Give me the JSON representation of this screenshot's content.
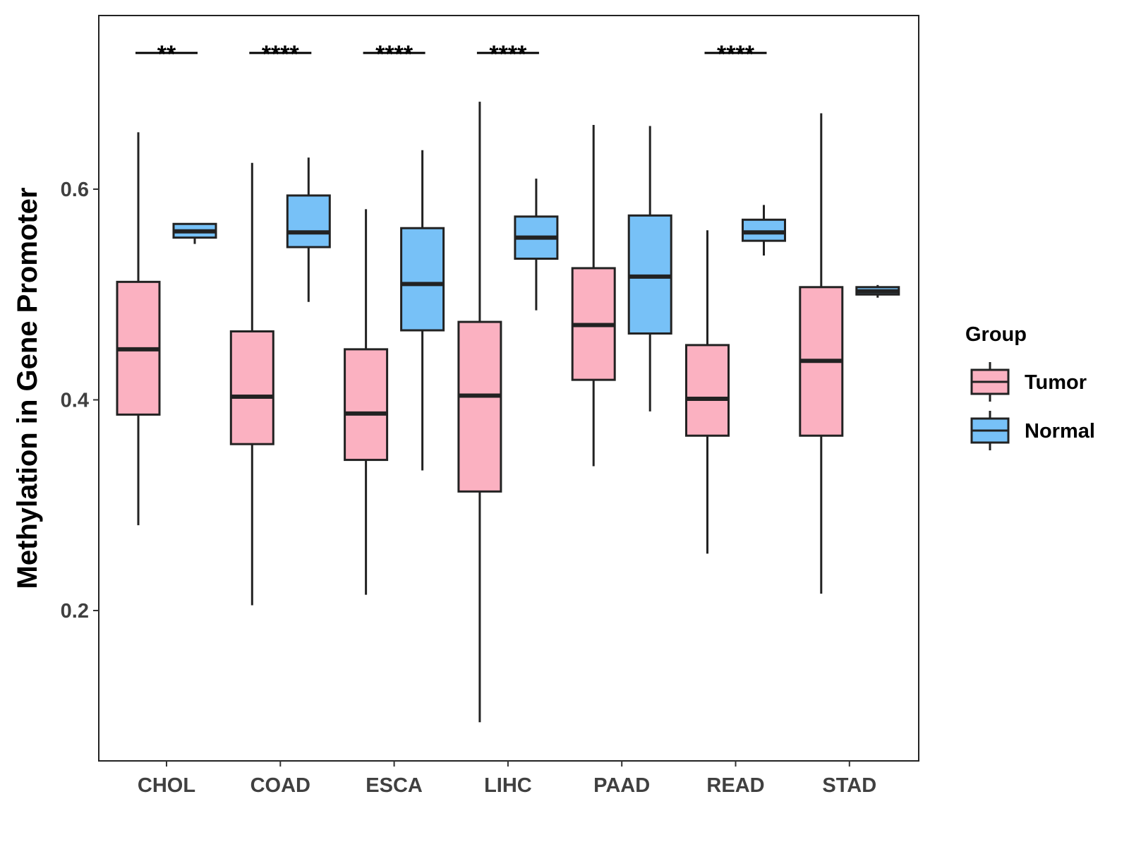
{
  "chart_data": {
    "type": "boxplot",
    "title": "",
    "xlabel": "",
    "ylabel": "Methylation in Gene Promoter",
    "ylim": [
      0.065,
      0.77
    ],
    "yticks": [
      0.2,
      0.4,
      0.6
    ],
    "ytick_labels": [
      "0.2",
      "0.4",
      "0.6"
    ],
    "grid": false,
    "categories": [
      "CHOL",
      "COAD",
      "ESCA",
      "LIHC",
      "PAAD",
      "READ",
      "STAD"
    ],
    "legend": {
      "title": "Group",
      "position": "right",
      "entries": [
        {
          "name": "Tumor",
          "color": "#fbb1c1"
        },
        {
          "name": "Normal",
          "color": "#77c1f7"
        }
      ]
    },
    "series": [
      {
        "name": "Tumor",
        "color": "#fbb1c1",
        "boxes": [
          {
            "min": 0.281,
            "q1": 0.386,
            "median": 0.448,
            "q3": 0.512,
            "max": 0.654
          },
          {
            "min": 0.205,
            "q1": 0.358,
            "median": 0.403,
            "q3": 0.465,
            "max": 0.625
          },
          {
            "min": 0.215,
            "q1": 0.343,
            "median": 0.387,
            "q3": 0.448,
            "max": 0.581
          },
          {
            "min": 0.094,
            "q1": 0.313,
            "median": 0.404,
            "q3": 0.474,
            "max": 0.683
          },
          {
            "min": 0.337,
            "q1": 0.419,
            "median": 0.471,
            "q3": 0.525,
            "max": 0.661
          },
          {
            "min": 0.254,
            "q1": 0.366,
            "median": 0.401,
            "q3": 0.452,
            "max": 0.561
          },
          {
            "min": 0.216,
            "q1": 0.366,
            "median": 0.437,
            "q3": 0.507,
            "max": 0.672
          }
        ]
      },
      {
        "name": "Normal",
        "color": "#77c1f7",
        "boxes": [
          {
            "min": 0.548,
            "q1": 0.554,
            "median": 0.56,
            "q3": 0.567,
            "max": 0.567
          },
          {
            "min": 0.493,
            "q1": 0.545,
            "median": 0.559,
            "q3": 0.594,
            "max": 0.63
          },
          {
            "min": 0.333,
            "q1": 0.466,
            "median": 0.51,
            "q3": 0.563,
            "max": 0.637
          },
          {
            "min": 0.485,
            "q1": 0.534,
            "median": 0.554,
            "q3": 0.574,
            "max": 0.61
          },
          {
            "min": 0.389,
            "q1": 0.463,
            "median": 0.517,
            "q3": 0.575,
            "max": 0.66
          },
          {
            "min": 0.537,
            "q1": 0.551,
            "median": 0.559,
            "q3": 0.571,
            "max": 0.585
          },
          {
            "min": 0.497,
            "q1": 0.5,
            "median": 0.503,
            "q3": 0.507,
            "max": 0.509
          }
        ]
      }
    ],
    "significance": [
      {
        "category": "CHOL",
        "label": "**"
      },
      {
        "category": "COAD",
        "label": "****"
      },
      {
        "category": "ESCA",
        "label": "****"
      },
      {
        "category": "LIHC",
        "label": "****"
      },
      {
        "category": "READ",
        "label": "****"
      }
    ]
  }
}
